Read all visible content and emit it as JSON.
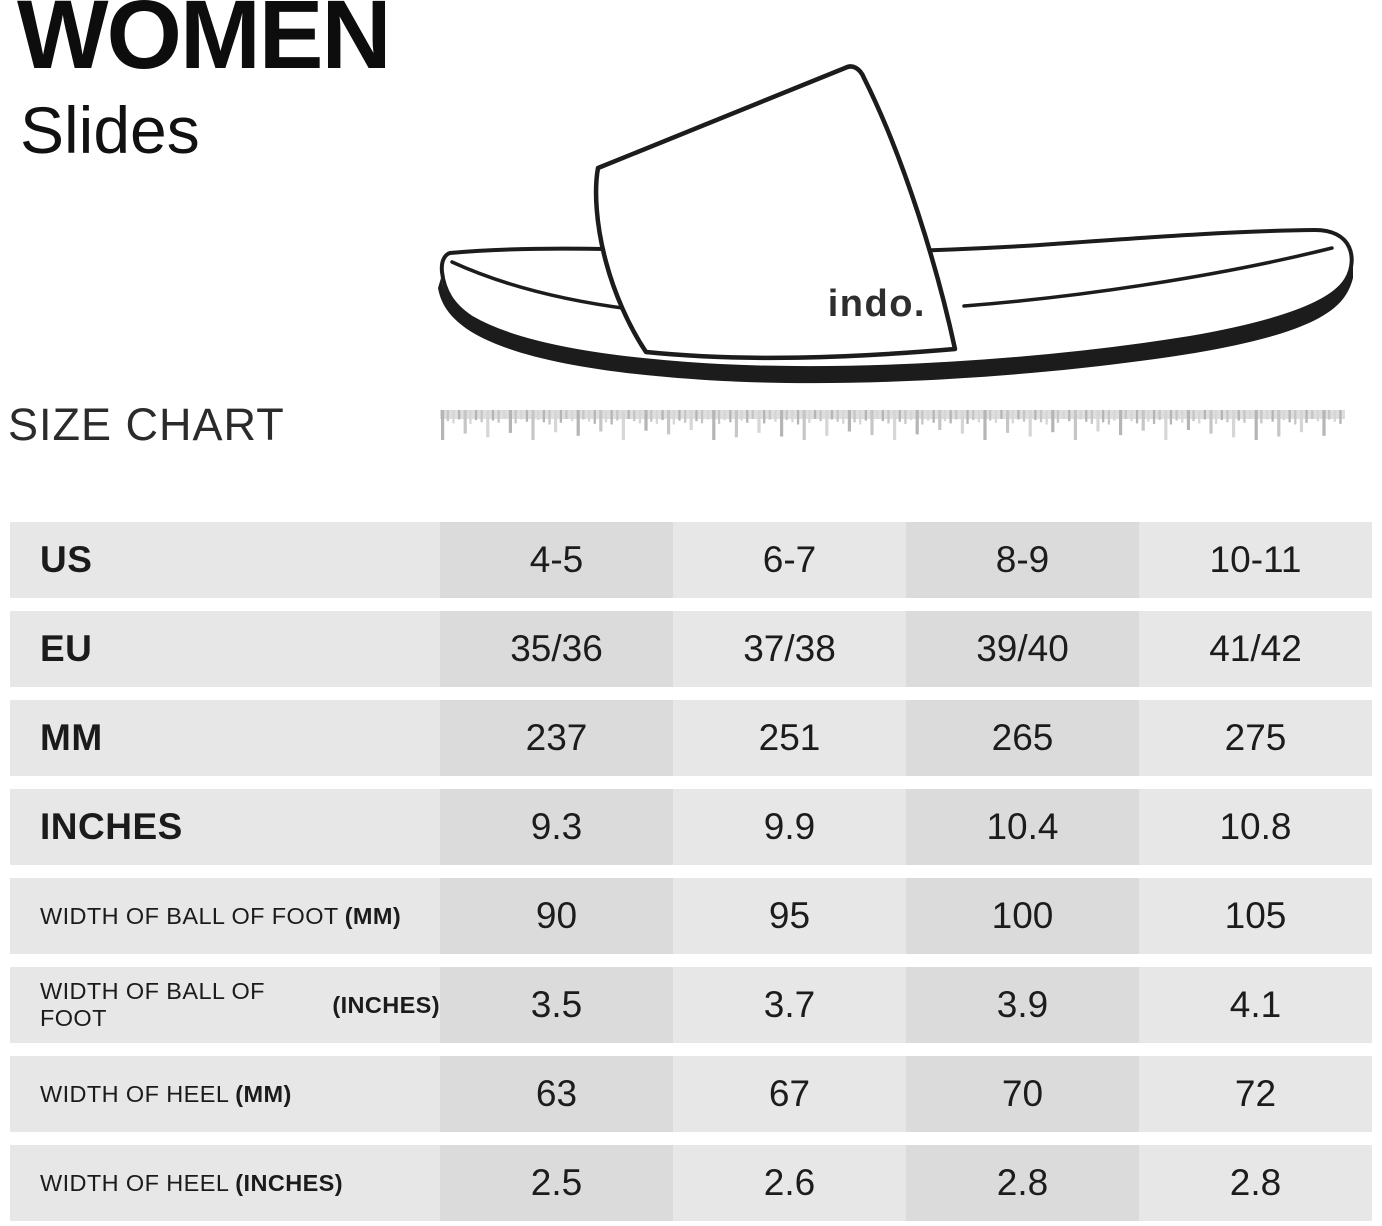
{
  "page": {
    "title": "WOMEN",
    "subtitle": "Slides",
    "section_heading": "SIZE CHART"
  },
  "illustration": {
    "type": "slide-sandal-side-view-line-drawing",
    "brand_logo": "indo."
  },
  "colors": {
    "row_light": "#e7e7e7",
    "row_dark": "#dbdbdb",
    "text": "#1b1b1b"
  },
  "table": {
    "rows": [
      {
        "label": "US",
        "label_bold": "",
        "values": [
          "4-5",
          "6-7",
          "8-9",
          "10-11"
        ]
      },
      {
        "label": "EU",
        "label_bold": "",
        "values": [
          "35/36",
          "37/38",
          "39/40",
          "41/42"
        ]
      },
      {
        "label": "MM",
        "label_bold": "",
        "values": [
          "237",
          "251",
          "265",
          "275"
        ]
      },
      {
        "label": "INCHES",
        "label_bold": "",
        "values": [
          "9.3",
          "9.9",
          "10.4",
          "10.8"
        ]
      },
      {
        "label": "WIDTH OF BALL OF FOOT",
        "label_bold": "(MM)",
        "values": [
          "90",
          "95",
          "100",
          "105"
        ]
      },
      {
        "label": "WIDTH OF BALL OF FOOT",
        "label_bold": "(INCHES)",
        "values": [
          "3.5",
          "3.7",
          "3.9",
          "4.1"
        ]
      },
      {
        "label": "WIDTH OF HEEL",
        "label_bold": "(MM)",
        "values": [
          "63",
          "67",
          "70",
          "72"
        ]
      },
      {
        "label": "WIDTH OF HEEL",
        "label_bold": "(INCHES)",
        "values": [
          "2.5",
          "2.6",
          "2.8",
          "2.8"
        ]
      }
    ]
  }
}
